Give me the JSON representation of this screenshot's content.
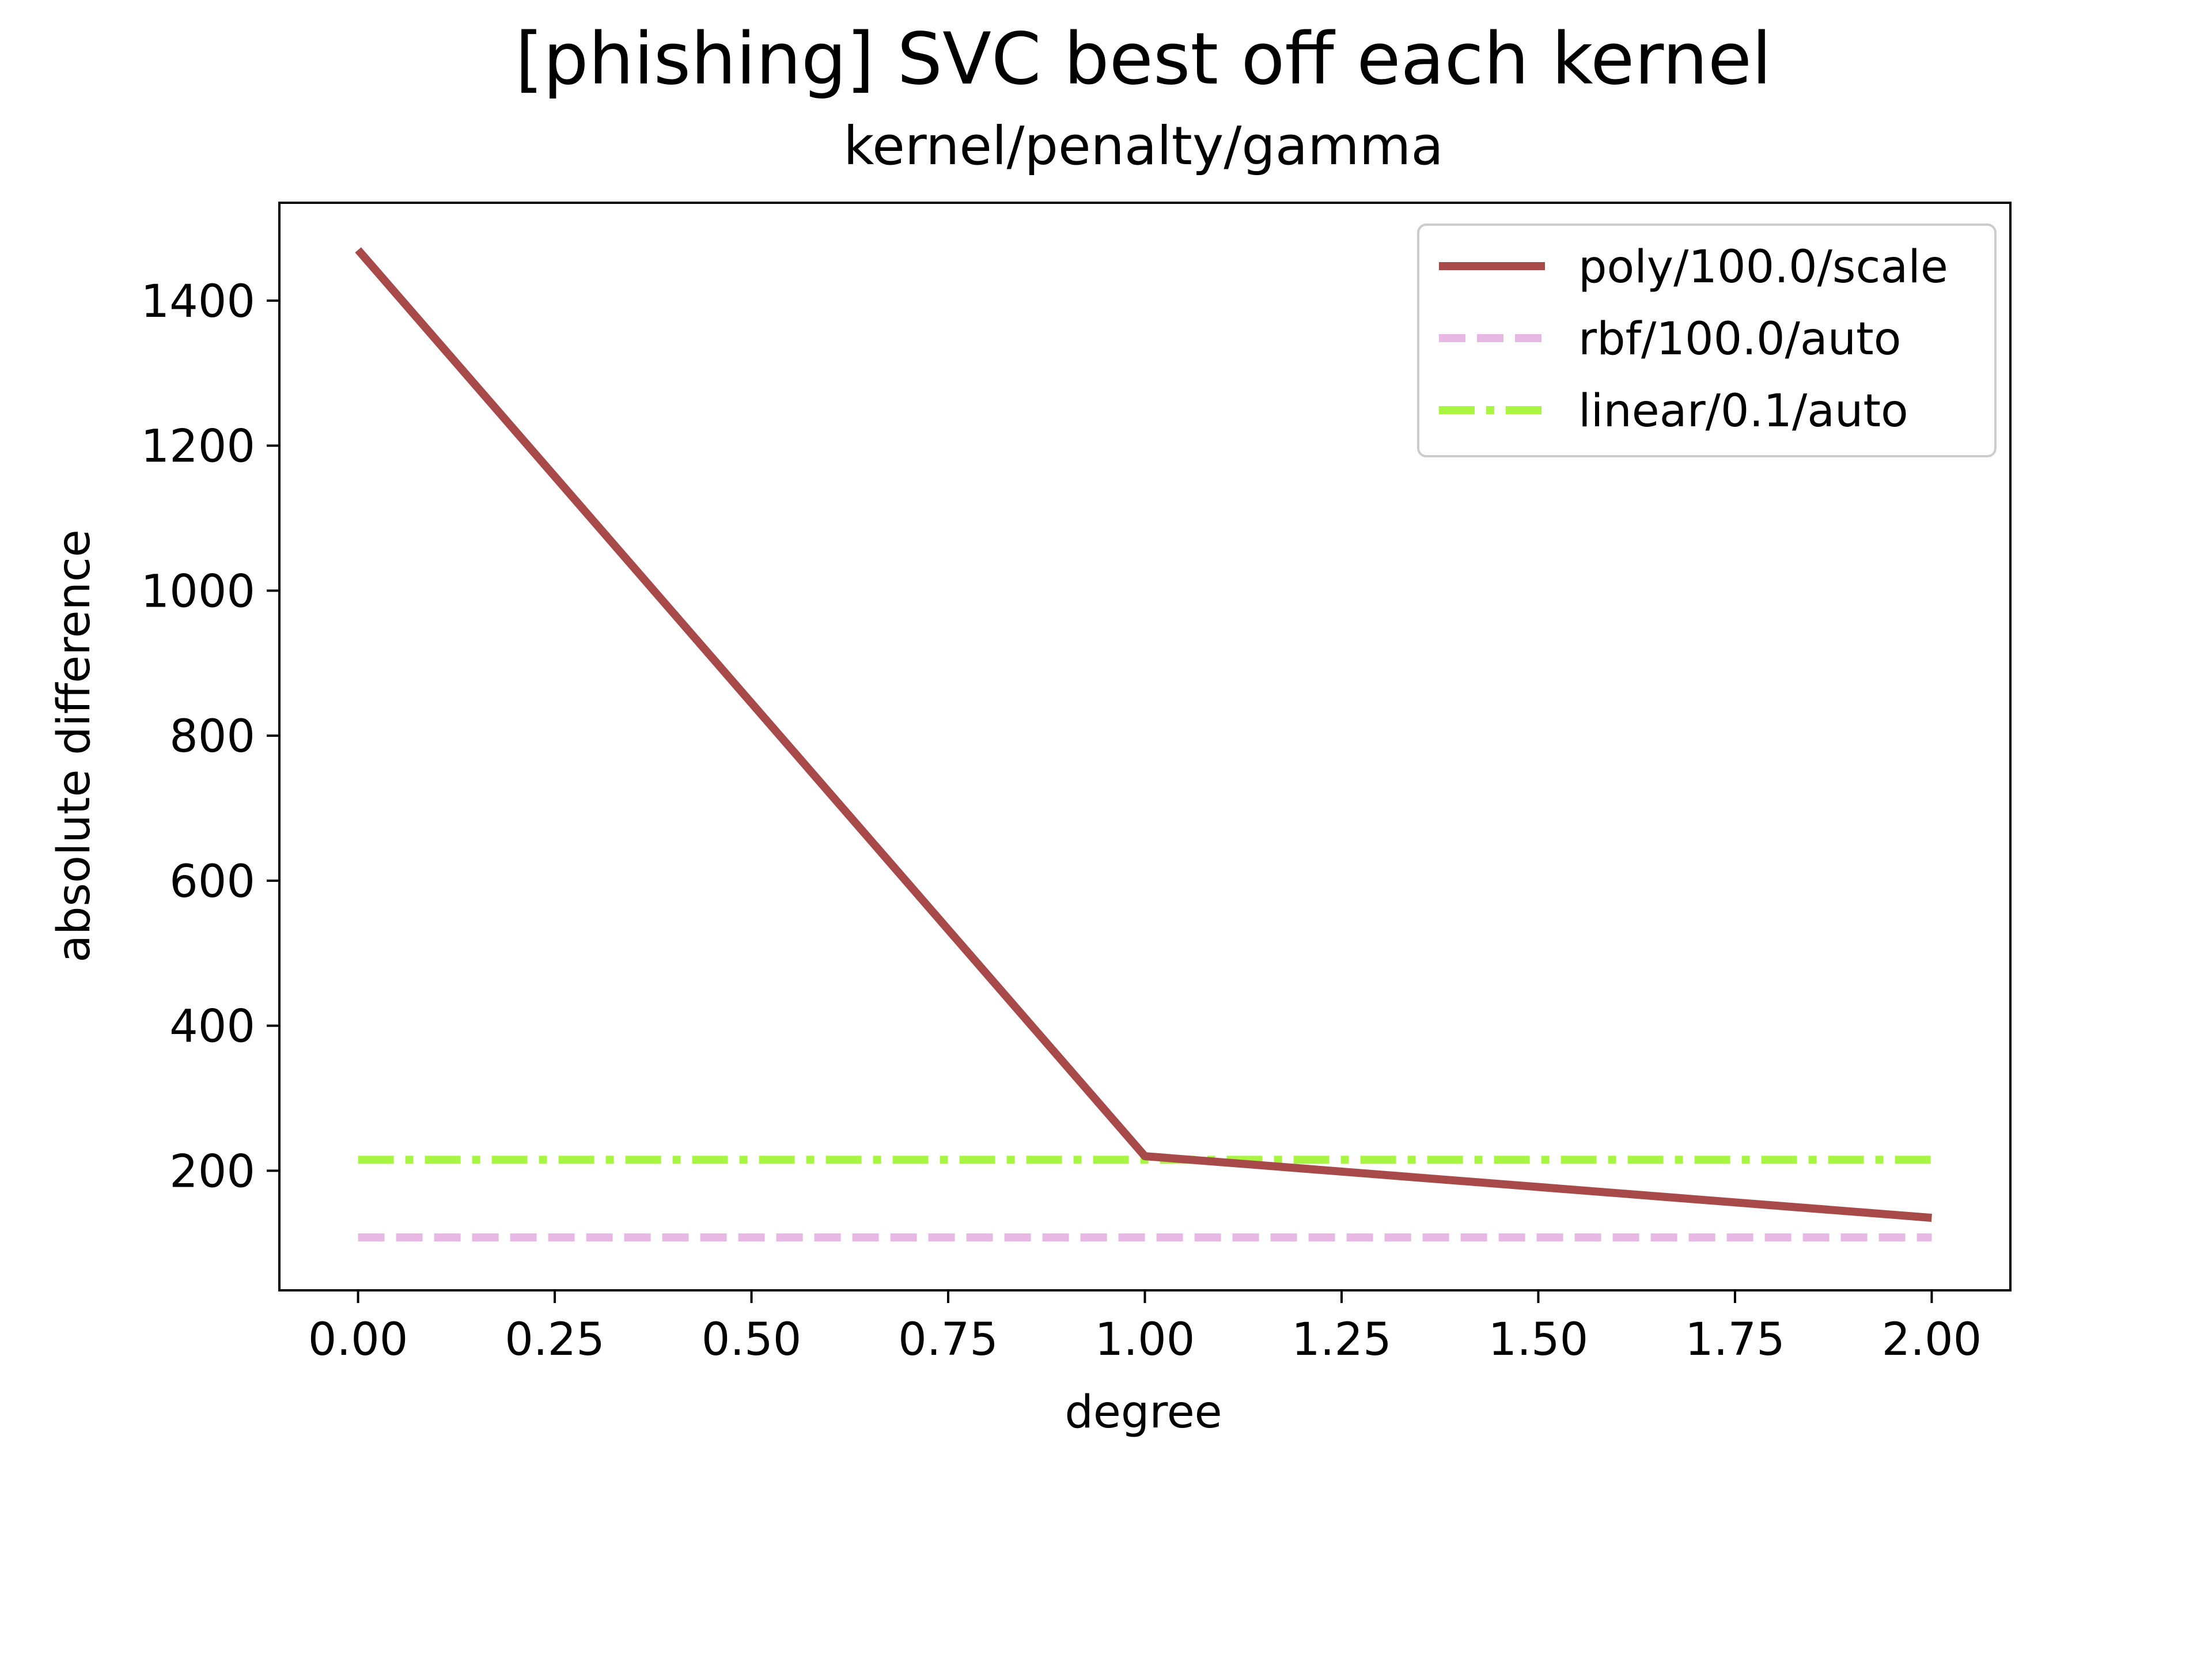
{
  "chart_data": {
    "type": "line",
    "title": "[phishing] SVC best off each kernel",
    "subtitle": "kernel/penalty/gamma",
    "xlabel": "degree",
    "ylabel": "absolute difference",
    "xlim": [
      -0.1,
      2.1
    ],
    "ylim": [
      35,
      1535
    ],
    "x_ticks": [
      0.0,
      0.25,
      0.5,
      0.75,
      1.0,
      1.25,
      1.5,
      1.75,
      2.0
    ],
    "x_tick_labels": [
      "0.00",
      "0.25",
      "0.50",
      "0.75",
      "1.00",
      "1.25",
      "1.50",
      "1.75",
      "2.00"
    ],
    "y_ticks": [
      200,
      400,
      600,
      800,
      1000,
      1200,
      1400
    ],
    "y_tick_labels": [
      "200",
      "400",
      "600",
      "800",
      "1000",
      "1200",
      "1400"
    ],
    "grid": false,
    "legend_position": "top-right",
    "series": [
      {
        "name": "poly/100.0/scale",
        "x": [
          0,
          1,
          2
        ],
        "values": [
          1470,
          220,
          135
        ],
        "color": "#a94a4a",
        "style": "solid"
      },
      {
        "name": "rbf/100.0/auto",
        "x": [
          0,
          1,
          2
        ],
        "values": [
          108,
          108,
          108
        ],
        "color": "#e6b8e3",
        "style": "dashed"
      },
      {
        "name": "linear/0.1/auto",
        "x": [
          0,
          1,
          2
        ],
        "values": [
          215,
          215,
          215
        ],
        "color": "#a8f542",
        "style": "dashdot"
      }
    ]
  }
}
